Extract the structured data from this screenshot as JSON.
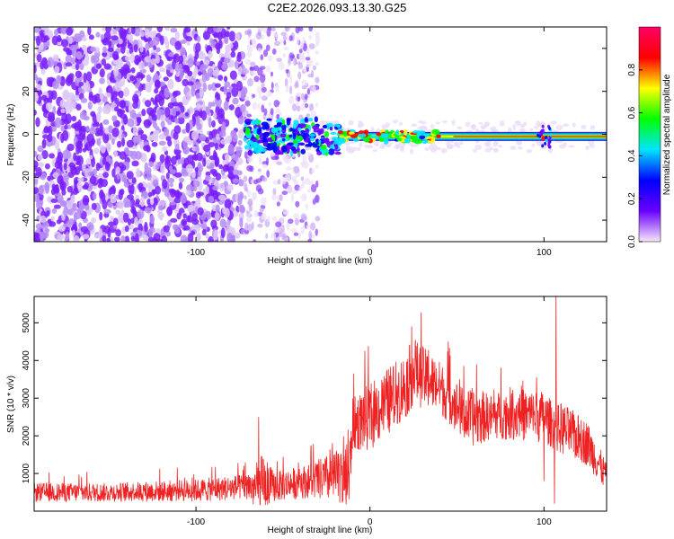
{
  "title": "C2E2.2026.093.13.30.G25",
  "chart_data": [
    {
      "type": "heatmap",
      "xlabel": "Height of straight line (km)",
      "ylabel": "Frequency (Hz)",
      "xlim": [
        -193,
        136
      ],
      "ylim": [
        -50,
        50
      ],
      "xticks": [
        -100,
        0,
        100
      ],
      "xtick_labels": [
        "-100",
        "0",
        "100"
      ],
      "yticks": [
        -40,
        -20,
        0,
        20,
        40
      ],
      "ytick_labels": [
        "-40",
        "-20",
        "0",
        "20",
        "40"
      ],
      "colorbar": {
        "label": "Normalized spectral amplitude",
        "range": [
          0,
          1
        ],
        "ticks": [
          0.0,
          0.2,
          0.4,
          0.6,
          0.8
        ],
        "tick_labels": [
          "0.0",
          "0.2",
          "0.4",
          "0.6",
          "0.8"
        ],
        "colors": [
          "#f8e8f8",
          "#6a00ff",
          "#0000ff",
          "#00e5ff",
          "#00ff00",
          "#ffff00",
          "#ff0000",
          "#ff0066"
        ]
      },
      "features": {
        "noise_region_x": [
          -193,
          -72
        ],
        "sparse_noise_region_x": [
          -72,
          -30
        ],
        "signal_band_x": [
          -72,
          136
        ],
        "signal_center_freq": -1,
        "signal_peak_points": [
          [
            -17,
            1
          ],
          [
            -5,
            1
          ],
          [
            5,
            0
          ],
          [
            100,
            -2
          ]
        ]
      }
    },
    {
      "type": "line",
      "xlabel": "Height of straight line (km)",
      "ylabel": "SNR (10 * v/v)",
      "xlim": [
        -193,
        136
      ],
      "ylim": [
        0,
        5700
      ],
      "xticks": [
        -100,
        0,
        100
      ],
      "xtick_labels": [
        "-100",
        "0",
        "100"
      ],
      "yticks": [
        1000,
        2000,
        3000,
        4000,
        5000
      ],
      "ytick_labels": [
        "1000",
        "2000",
        "3000",
        "4000",
        "5000"
      ],
      "line_color": "#ee2222",
      "envelope": {
        "x": [
          -193,
          -150,
          -100,
          -70,
          -62,
          -55,
          -35,
          -20,
          -12,
          -10,
          0,
          20,
          25,
          40,
          55,
          60,
          70,
          80,
          100,
          107,
          110,
          125,
          136
        ],
        "base": [
          500,
          500,
          550,
          650,
          600,
          650,
          800,
          900,
          800,
          2300,
          2500,
          3300,
          3700,
          3300,
          2500,
          2500,
          2500,
          2600,
          2500,
          2200,
          2200,
          1800,
          900
        ],
        "amp": [
          250,
          250,
          300,
          350,
          900,
          400,
          450,
          700,
          900,
          700,
          900,
          900,
          900,
          700,
          700,
          800,
          600,
          700,
          700,
          600,
          700,
          600,
          400
        ]
      },
      "spikes": [
        [
          -64,
          2500
        ],
        [
          24,
          4900
        ],
        [
          107,
          5700
        ],
        [
          100,
          800
        ],
        [
          106,
          200
        ]
      ]
    }
  ]
}
